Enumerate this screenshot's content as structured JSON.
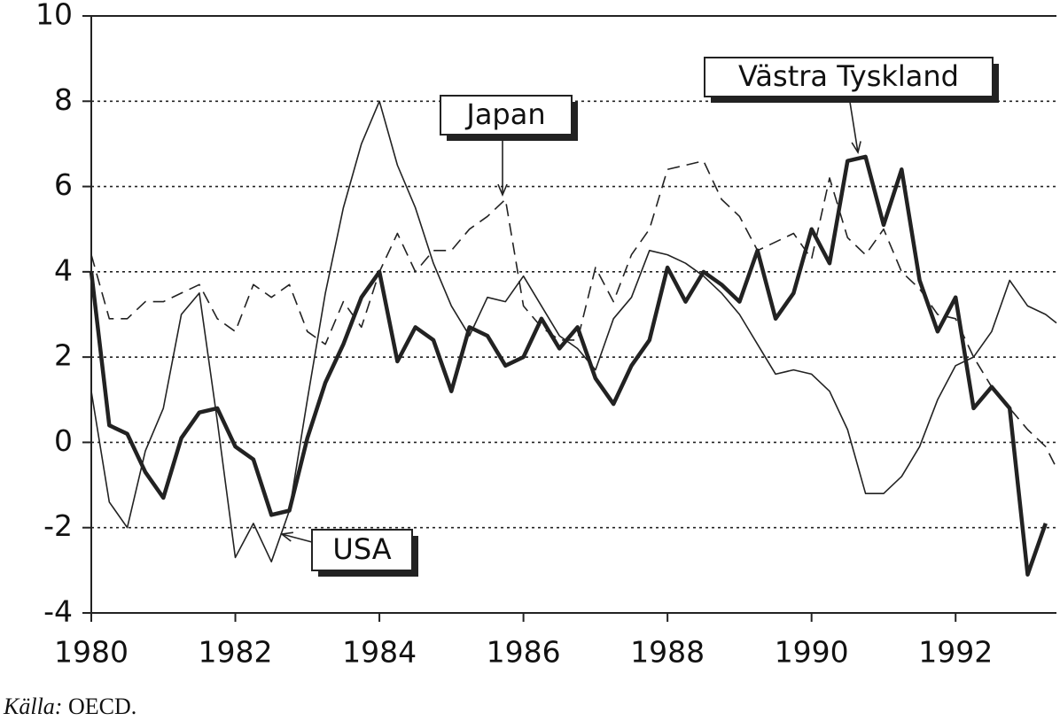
{
  "chart_data": {
    "type": "line",
    "x": [
      1980,
      1980.25,
      1980.5,
      1980.75,
      1981,
      1981.25,
      1981.5,
      1981.75,
      1982,
      1982.25,
      1982.5,
      1982.75,
      1983,
      1983.25,
      1983.5,
      1983.75,
      1984,
      1984.25,
      1984.5,
      1984.75,
      1985,
      1985.25,
      1985.5,
      1985.75,
      1986,
      1986.25,
      1986.5,
      1986.75,
      1987,
      1987.25,
      1987.5,
      1987.75,
      1988,
      1988.25,
      1988.5,
      1988.75,
      1989,
      1989.25,
      1989.5,
      1989.75,
      1990,
      1990.25,
      1990.5,
      1990.75,
      1991,
      1991.25,
      1991.5,
      1991.75,
      1992,
      1992.25,
      1992.5,
      1992.75,
      1993,
      1993.25,
      1993.4
    ],
    "series": [
      {
        "name": "USA",
        "color": "#222",
        "linewidth": 1.6,
        "dashed": false,
        "values": [
          1.2,
          -1.4,
          -2.0,
          -0.2,
          0.8,
          3.0,
          3.5,
          0.5,
          -2.7,
          -1.9,
          -2.8,
          -1.6,
          1.0,
          3.5,
          5.5,
          7.0,
          8.0,
          6.5,
          5.5,
          4.2,
          3.2,
          2.5,
          3.4,
          3.3,
          3.9,
          3.2,
          2.5,
          2.2,
          1.7,
          2.9,
          3.4,
          4.5,
          4.4,
          4.2,
          3.9,
          3.5,
          3.0,
          2.3,
          1.6,
          1.7,
          1.6,
          1.2,
          0.3,
          -1.2,
          -1.2,
          -0.8,
          -0.1,
          1.0,
          1.8,
          2.0,
          2.6,
          3.8,
          3.2,
          3.0,
          2.8
        ]
      },
      {
        "name": "Japan",
        "color": "#222",
        "linewidth": 1.6,
        "dashed": true,
        "values": [
          4.4,
          2.9,
          2.9,
          3.3,
          3.3,
          3.5,
          3.7,
          2.9,
          2.6,
          3.7,
          3.4,
          3.7,
          2.6,
          2.3,
          3.3,
          2.7,
          4.0,
          4.9,
          4.0,
          4.5,
          4.5,
          5.0,
          5.3,
          5.7,
          3.2,
          2.7,
          2.4,
          2.4,
          4.1,
          3.3,
          4.4,
          5.0,
          6.4,
          6.5,
          6.6,
          5.7,
          5.3,
          4.5,
          4.7,
          4.9,
          4.3,
          6.2,
          4.8,
          4.4,
          5.0,
          4.0,
          3.6,
          3.0,
          2.9,
          2.0,
          1.3,
          0.8,
          0.3,
          -0.1,
          -0.6
        ]
      },
      {
        "name": "Västra Tyskland",
        "color": "#222",
        "linewidth": 4.5,
        "dashed": false,
        "values": [
          4.0,
          0.4,
          0.2,
          -0.7,
          -1.3,
          0.1,
          0.7,
          0.8,
          -0.1,
          -0.4,
          -1.7,
          -1.6,
          0.1,
          1.4,
          2.3,
          3.4,
          4.0,
          1.9,
          2.7,
          2.4,
          1.2,
          2.7,
          2.5,
          1.8,
          2.0,
          2.9,
          2.2,
          2.7,
          1.5,
          0.9,
          1.8,
          2.4,
          4.1,
          3.3,
          4.0,
          3.7,
          3.3,
          4.5,
          2.9,
          3.5,
          5.0,
          4.2,
          6.6,
          6.7,
          5.1,
          6.4,
          3.8,
          2.6,
          3.4,
          0.8,
          1.3,
          0.8,
          -3.1,
          -1.9,
          null
        ]
      }
    ],
    "xlim": [
      1980,
      1993.4
    ],
    "xticks": [
      1980,
      1982,
      1984,
      1986,
      1988,
      1990,
      1992
    ],
    "ylim": [
      -4,
      10
    ],
    "yticks": [
      -4,
      -2,
      0,
      2,
      4,
      6,
      8,
      10
    ],
    "grid": true,
    "source_label": "Källa:",
    "source": "OECD."
  }
}
